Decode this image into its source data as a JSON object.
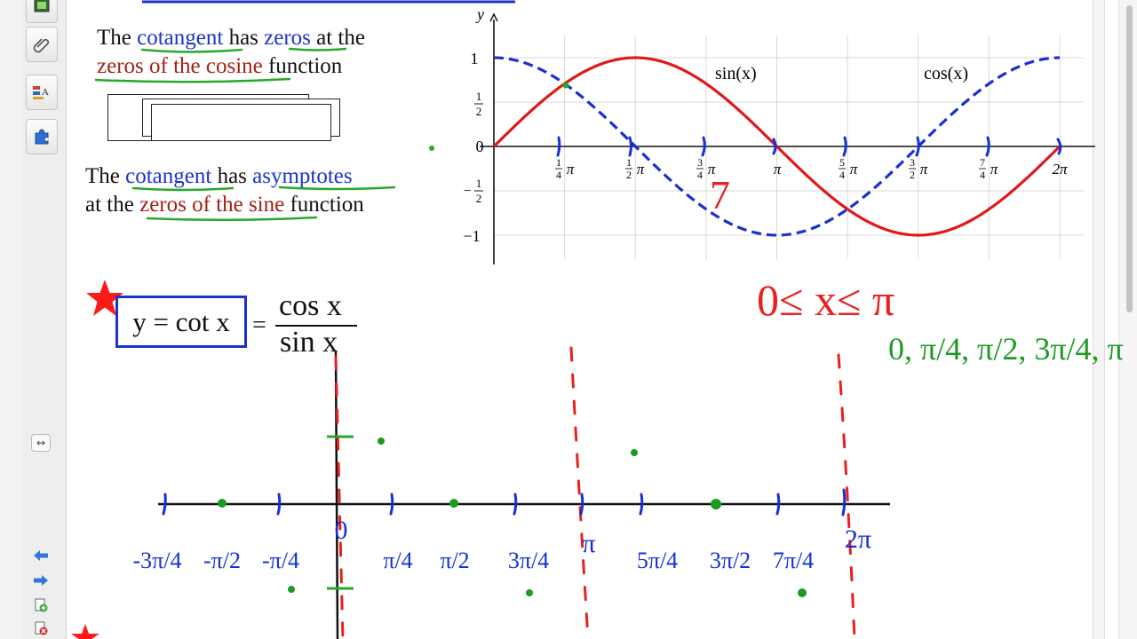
{
  "toolbar": {
    "tools": [
      {
        "name": "gallery",
        "icon": "gallery-icon"
      },
      {
        "name": "attachments",
        "icon": "paperclip-icon"
      },
      {
        "name": "properties",
        "icon": "properties-icon"
      },
      {
        "name": "add-ons",
        "icon": "puzzle-icon"
      }
    ],
    "expand_label": "↔"
  },
  "notes": {
    "line1_part1": "The ",
    "line1_cotangent": "cotangent",
    "line1_part2": " has",
    "line1_zeros": " zeros",
    "line1_part3": " at the",
    "line2_zeros_cosine": "zeros of the cosine",
    "line2_function": " function",
    "line3_part1": "The ",
    "line3_cotangent": "cotangent",
    "line3_part2": " has ",
    "line3_asymptotes": "asymptotes",
    "line4_part1": "at the ",
    "line4_zeros_sine": "zeros of the sine",
    "line4_function": " function"
  },
  "formula": {
    "boxed": "y = cot x",
    "equals": "=",
    "numerator": "cos x",
    "denominator": "sin x"
  },
  "graph": {
    "y_axis_label": "y",
    "y_ticks": [
      "1",
      "1",
      "2",
      "0",
      "−",
      "1",
      "2",
      "−1"
    ],
    "x_ticks": [
      {
        "num": "1",
        "den": "4",
        "sym": "π"
      },
      {
        "num": "1",
        "den": "2",
        "sym": "π"
      },
      {
        "num": "3",
        "den": "4",
        "sym": "π"
      },
      {
        "sym": "π"
      },
      {
        "num": "5",
        "den": "4",
        "sym": "π"
      },
      {
        "num": "3",
        "den": "2",
        "sym": "π"
      },
      {
        "num": "7",
        "den": "4",
        "sym": "π"
      },
      {
        "sym": "2π"
      }
    ],
    "sin_label": "sin(x)",
    "cos_label": "cos(x)",
    "sin_color": "#e01818",
    "cos_color": "#1a2fd0"
  },
  "handwriting": {
    "domain": "0≤ x≤ π",
    "points": "0, π/4, π/2, 3π/4, π",
    "sketch_axis_labels": [
      "-3π/4",
      "-π/2",
      "-π/4",
      "0",
      "π/4",
      "π/2",
      "3π/4",
      "π",
      "5π/4",
      "3π/2",
      "7π/4",
      "2π"
    ],
    "annotation_7": "7",
    "ink_red": "#e82020",
    "ink_blue": "#1430d8",
    "ink_green": "#1c9a22"
  }
}
